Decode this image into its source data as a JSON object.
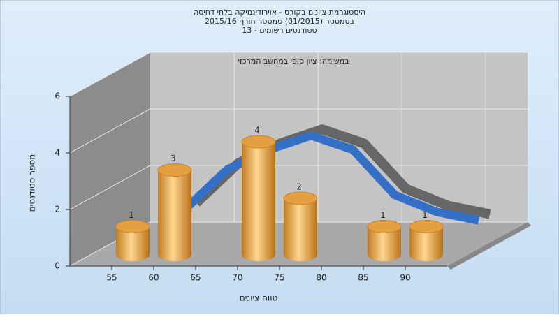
{
  "chart_data": {
    "type": "bar3d",
    "title": [
      "היסטוגרמת ציונים בקורס - אוירודינמיקה בלתי דחיסה",
      "בסמסטר  (01/2015)  סמסטר חורף 2015/16",
      "סטודנטים רשומים - 13"
    ],
    "annotation": "במשימה: ציון סופי במחשב המרכזי",
    "x_label": "טווח ציונים",
    "y_label": "מספר סטודנטים",
    "categories": [
      "55",
      "60",
      "65",
      "70",
      "75",
      "80",
      "85",
      "90"
    ],
    "series": [
      {
        "color": "#e3a040",
        "values": [
          1,
          3,
          0,
          4,
          2,
          0,
          1,
          1
        ]
      },
      {
        "color": "#3570c8",
        "values": [
          1.0,
          2.4,
          3.1,
          3.6,
          3.1,
          1.5,
          0.9,
          0.6
        ]
      }
    ],
    "ylim": [
      0,
      6
    ],
    "yticks": [
      0,
      2,
      4,
      6
    ],
    "grid": true
  }
}
